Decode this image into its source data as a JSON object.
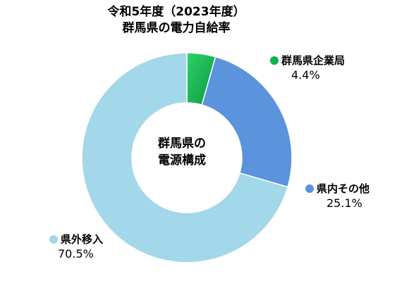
{
  "chart_data": {
    "type": "pie",
    "style": "donut",
    "title_lines": [
      "令和5年度（2023年度）",
      "群馬県の電力自給率"
    ],
    "center_label_lines": [
      "群馬県の",
      "電源構成"
    ],
    "slices": [
      {
        "name": "群馬県企業局",
        "value": 4.4,
        "value_label": "4.4%",
        "color": "#0db14b"
      },
      {
        "name": "県内その他",
        "value": 25.1,
        "value_label": "25.1%",
        "color": "#5b93dc"
      },
      {
        "name": "県外移入",
        "value": 70.5,
        "value_label": "70.5%",
        "color": "#a3d7ea"
      }
    ],
    "start_angle_deg": 0,
    "direction": "clockwise"
  }
}
